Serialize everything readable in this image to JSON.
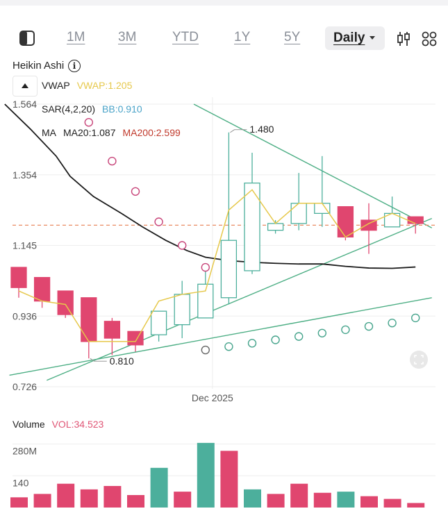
{
  "toolbar": {
    "timeframes": [
      "1M",
      "3M",
      "YTD",
      "1Y",
      "5Y"
    ],
    "interval": "Daily"
  },
  "colors": {
    "up": "#4caf9c",
    "down": "#e0466f",
    "vwap": "#e6c84a",
    "ma20": "#1a1a1a",
    "bb": "#4aa3c8",
    "ma200": "#c0392b",
    "sar": "#c8457a",
    "sar_up": "#46a48c",
    "trend": "#4cae84",
    "price_line": "#e98a62"
  },
  "header": {
    "title": "Heikin Ashi"
  },
  "legend": {
    "vwap_key": "VWAP",
    "vwap_val": "VWAP:1.205",
    "sar_key": "SAR(4,2,20)",
    "bb_val": "BB:0.910",
    "ma_key": "MA",
    "ma20_val": "MA20:1.087",
    "ma200_val": "MA200:2.599"
  },
  "chart_data": [
    {
      "type": "candlestick",
      "title": "Heikin Ashi",
      "y_ticks": [
        "1.564",
        "1.354",
        "1.145",
        "0.936",
        "0.726"
      ],
      "ylim": [
        0.726,
        1.564
      ],
      "x_label_tick": "Dec 2025",
      "annotations": {
        "high": "1.480",
        "low": "0.810"
      },
      "current_price": 1.205,
      "candles": [
        {
          "o": 1.08,
          "h": 1.08,
          "l": 0.99,
          "c": 1.02
        },
        {
          "o": 1.05,
          "h": 1.05,
          "l": 0.96,
          "c": 0.98
        },
        {
          "o": 1.01,
          "h": 1.01,
          "l": 0.93,
          "c": 0.94
        },
        {
          "o": 0.99,
          "h": 0.99,
          "l": 0.81,
          "c": 0.86
        },
        {
          "o": 0.92,
          "h": 0.93,
          "l": 0.82,
          "c": 0.87
        },
        {
          "o": 0.89,
          "h": 0.89,
          "l": 0.83,
          "c": 0.85
        },
        {
          "o": 0.88,
          "h": 0.95,
          "l": 0.86,
          "c": 0.95
        },
        {
          "o": 0.91,
          "h": 1.04,
          "l": 0.87,
          "c": 1.0
        },
        {
          "o": 0.93,
          "h": 1.07,
          "l": 0.93,
          "c": 1.03
        },
        {
          "o": 0.99,
          "h": 1.48,
          "l": 0.97,
          "c": 1.16
        },
        {
          "o": 1.07,
          "h": 1.42,
          "l": 1.06,
          "c": 1.33
        },
        {
          "o": 1.19,
          "h": 1.22,
          "l": 1.18,
          "c": 1.21
        },
        {
          "o": 1.21,
          "h": 1.36,
          "l": 1.19,
          "c": 1.27
        },
        {
          "o": 1.24,
          "h": 1.41,
          "l": 1.2,
          "c": 1.27
        },
        {
          "o": 1.26,
          "h": 1.26,
          "l": 1.16,
          "c": 1.17
        },
        {
          "o": 1.22,
          "h": 1.27,
          "l": 1.12,
          "c": 1.19
        },
        {
          "o": 1.2,
          "h": 1.29,
          "l": 1.2,
          "c": 1.24
        },
        {
          "o": 1.23,
          "h": 1.23,
          "l": 1.18,
          "c": 1.21
        }
      ],
      "vwap": [
        1.01,
        0.98,
        0.97,
        0.86,
        0.86,
        0.86,
        0.98,
        1.0,
        1.01,
        1.25,
        1.31,
        1.21,
        1.27,
        1.27,
        1.17,
        1.21,
        1.24,
        1.21
      ],
      "ma20": [
        {
          "x": -0.6,
          "y": 1.564
        },
        {
          "x": 0.5,
          "y": 1.49
        },
        {
          "x": 1.6,
          "y": 1.41
        },
        {
          "x": 2.2,
          "y": 1.35
        },
        {
          "x": 3.2,
          "y": 1.29
        },
        {
          "x": 4.4,
          "y": 1.24
        },
        {
          "x": 5.3,
          "y": 1.2
        },
        {
          "x": 6.3,
          "y": 1.16
        },
        {
          "x": 7.2,
          "y": 1.13
        },
        {
          "x": 8.0,
          "y": 1.11
        },
        {
          "x": 9.0,
          "y": 1.1
        },
        {
          "x": 10.0,
          "y": 1.095
        },
        {
          "x": 11.0,
          "y": 1.092
        },
        {
          "x": 12.0,
          "y": 1.09
        },
        {
          "x": 13.0,
          "y": 1.09
        },
        {
          "x": 14.0,
          "y": 1.083
        },
        {
          "x": 15.0,
          "y": 1.078
        },
        {
          "x": 16.0,
          "y": 1.077
        },
        {
          "x": 17.0,
          "y": 1.081
        }
      ],
      "sar_down": [
        {
          "x": 3,
          "y": 1.51
        },
        {
          "x": 4,
          "y": 1.395
        },
        {
          "x": 5,
          "y": 1.305
        },
        {
          "x": 6,
          "y": 1.215
        },
        {
          "x": 7,
          "y": 1.145
        },
        {
          "x": 8,
          "y": 1.08
        }
      ],
      "sar_up": [
        {
          "x": 8,
          "y": 0.835
        },
        {
          "x": 9,
          "y": 0.845
        },
        {
          "x": 10,
          "y": 0.855
        },
        {
          "x": 11,
          "y": 0.865
        },
        {
          "x": 12,
          "y": 0.875
        },
        {
          "x": 13,
          "y": 0.885
        },
        {
          "x": 14,
          "y": 0.895
        },
        {
          "x": 15,
          "y": 0.905
        },
        {
          "x": 16,
          "y": 0.915
        },
        {
          "x": 17,
          "y": 0.93
        }
      ],
      "trendlines": [
        {
          "x1": 7.5,
          "y1": 1.564,
          "x2": 17.7,
          "y2": 1.197
        },
        {
          "x1": 1.2,
          "y1": 0.745,
          "x2": 17.7,
          "y2": 1.225
        },
        {
          "x1": -0.4,
          "y1": 0.76,
          "x2": 17.7,
          "y2": 0.99
        }
      ]
    },
    {
      "type": "bar",
      "title": "Volume",
      "value_label": "VOL:34.523",
      "y_ticks": [
        "280M",
        "140"
      ],
      "ylim": [
        0,
        300
      ],
      "values": [
        45,
        60,
        105,
        80,
        95,
        55,
        175,
        70,
        285,
        250,
        80,
        60,
        105,
        65,
        70,
        50,
        38,
        20
      ],
      "direction": [
        "down",
        "down",
        "down",
        "down",
        "down",
        "down",
        "up",
        "down",
        "up",
        "down",
        "up",
        "down",
        "down",
        "down",
        "up",
        "down",
        "down",
        "down"
      ]
    }
  ]
}
